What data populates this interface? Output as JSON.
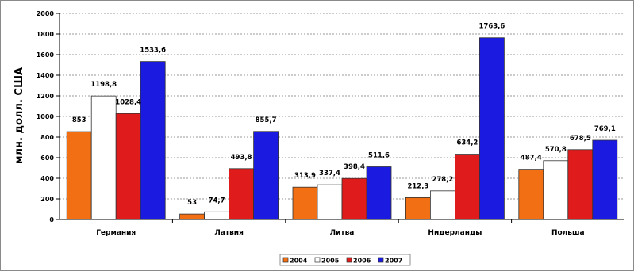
{
  "chart_data": {
    "type": "bar",
    "ylabel": "млн. долл. США",
    "ylim": [
      0,
      2000
    ],
    "yticks": [
      0,
      200,
      400,
      600,
      800,
      1000,
      1200,
      1400,
      1600,
      1800,
      2000
    ],
    "grid": true,
    "legend_position": "bottom",
    "categories": [
      "Германия",
      "Латвия",
      "Литва",
      "Нидерланды",
      "Польша"
    ],
    "series": [
      {
        "name": "2004",
        "color": "#f36f13",
        "values": [
          853,
          53,
          313.9,
          212.3,
          487.4
        ],
        "labels": [
          "853",
          "53",
          "313,9",
          "212,3",
          "487,4"
        ]
      },
      {
        "name": "2005",
        "color": "#ffffff",
        "values": [
          1198.8,
          74.7,
          337.4,
          278.2,
          570.8
        ],
        "labels": [
          "1198,8",
          "74,7",
          "337,4",
          "278,2",
          "570,8"
        ]
      },
      {
        "name": "2006",
        "color": "#e01b1b",
        "values": [
          1028.4,
          493.8,
          398.4,
          634.2,
          678.5
        ],
        "labels": [
          "1028,4",
          "493,8",
          "398,4",
          "634,2",
          "678,5"
        ]
      },
      {
        "name": "2007",
        "color": "#1a1ae0",
        "values": [
          1533.6,
          855.7,
          511.6,
          1763.6,
          769.1
        ],
        "labels": [
          "1533,6",
          "855,7",
          "511,6",
          "1763,6",
          "769,1"
        ]
      }
    ]
  }
}
